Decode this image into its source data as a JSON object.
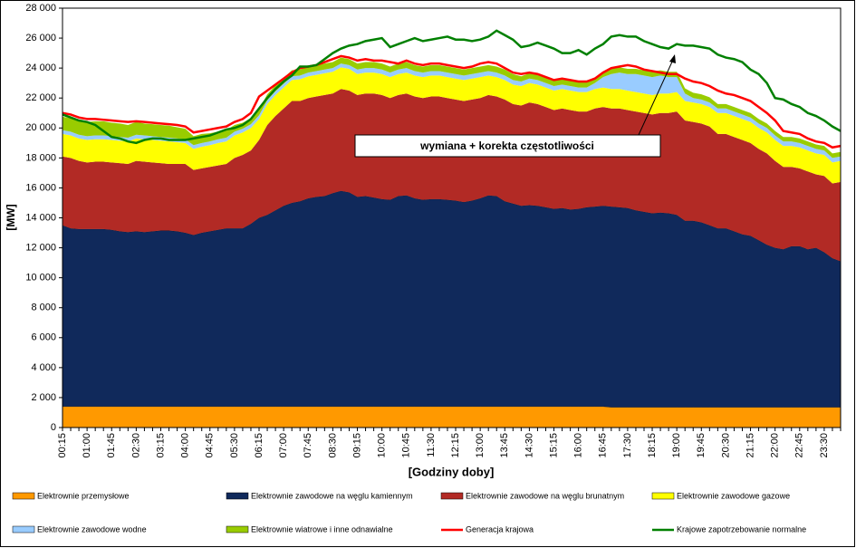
{
  "chart_data": {
    "type": "area",
    "stacked": true,
    "y_label": "[MW]",
    "x_label": "[Godziny doby]",
    "annotation": "wymiana + korekta częstotliwości",
    "ylim": [
      0,
      28000
    ],
    "yticks": [
      0,
      {
        "value": 2000,
        "label": "2 000"
      },
      {
        "value": 4000,
        "label": "4 000"
      },
      {
        "value": 6000,
        "label": "6 000"
      },
      {
        "value": 8000,
        "label": "8 000"
      },
      {
        "value": 10000,
        "label": "10 000"
      },
      {
        "value": 12000,
        "label": "12 000"
      },
      {
        "value": 14000,
        "label": "14 000"
      },
      {
        "value": 16000,
        "label": "16 000"
      },
      {
        "value": 18000,
        "label": "18 000"
      },
      {
        "value": 20000,
        "label": "20 000"
      },
      {
        "value": 22000,
        "label": "22 000"
      },
      {
        "value": 24000,
        "label": "24 000"
      },
      {
        "value": 26000,
        "label": "26 000"
      },
      {
        "value": 28000,
        "label": "28 000"
      }
    ],
    "categories": [
      "00:15",
      null,
      null,
      "01:00",
      null,
      null,
      "01:45",
      null,
      null,
      "02:30",
      null,
      null,
      "03:15",
      null,
      null,
      "04:00",
      null,
      null,
      "04:45",
      null,
      null,
      "05:30",
      null,
      null,
      "06:15",
      null,
      null,
      "07:00",
      null,
      null,
      "07:45",
      null,
      null,
      "08:30",
      null,
      null,
      "09:15",
      null,
      null,
      "10:00",
      null,
      null,
      "10:45",
      null,
      null,
      "11:30",
      null,
      null,
      "12:15",
      null,
      null,
      "13:00",
      null,
      null,
      "13:45",
      null,
      null,
      "14:30",
      null,
      null,
      "15:15",
      null,
      null,
      "16:00",
      null,
      null,
      "16:45",
      null,
      null,
      "17:30",
      null,
      null,
      "18:15",
      null,
      null,
      "19:00",
      null,
      null,
      "19:45",
      null,
      null,
      "20:30",
      null,
      null,
      "21:15",
      null,
      null,
      "22:00",
      null,
      null,
      "22:45",
      null,
      null,
      "23:30",
      null,
      null
    ],
    "series": [
      {
        "name": "Elektrownie przemysłowe",
        "type": "area",
        "color": "#FF9900",
        "values": [
          1400,
          1400,
          1400,
          1400,
          1400,
          1400,
          1400,
          1400,
          1400,
          1400,
          1400,
          1400,
          1400,
          1400,
          1400,
          1400,
          1400,
          1400,
          1400,
          1400,
          1400,
          1400,
          1400,
          1400,
          1400,
          1400,
          1400,
          1400,
          1400,
          1400,
          1400,
          1400,
          1400,
          1400,
          1400,
          1400,
          1400,
          1400,
          1400,
          1400,
          1400,
          1400,
          1400,
          1400,
          1400,
          1400,
          1400,
          1400,
          1400,
          1400,
          1400,
          1400,
          1400,
          1400,
          1400,
          1400,
          1400,
          1400,
          1400,
          1400,
          1400,
          1400,
          1400,
          1400,
          1400,
          1400,
          1400,
          1350,
          1350,
          1350,
          1350,
          1350,
          1350,
          1350,
          1350,
          1350,
          1350,
          1350,
          1350,
          1350,
          1350,
          1350,
          1350,
          1350,
          1350,
          1350,
          1350,
          1350,
          1350,
          1350,
          1350,
          1350,
          1350,
          1350,
          1350,
          1350
        ]
      },
      {
        "name": "Elektrownie zawodowe na węglu kamiennym",
        "type": "area",
        "color": "#10295B",
        "values": [
          12100,
          11900,
          11850,
          11850,
          11850,
          11850,
          11800,
          11700,
          11650,
          11700,
          11650,
          11700,
          11750,
          11750,
          11700,
          11600,
          11450,
          11600,
          11700,
          11800,
          11900,
          11900,
          11900,
          12200,
          12600,
          12800,
          13100,
          13400,
          13600,
          13700,
          13900,
          14000,
          14050,
          14250,
          14400,
          14300,
          14000,
          14050,
          13950,
          13850,
          13800,
          14050,
          14100,
          13900,
          13800,
          13850,
          13850,
          13800,
          13750,
          13650,
          13750,
          13900,
          14100,
          14050,
          13700,
          13550,
          13400,
          13450,
          13400,
          13300,
          13200,
          13250,
          13150,
          13200,
          13300,
          13350,
          13400,
          13400,
          13350,
          13300,
          13150,
          13050,
          12950,
          13000,
          12950,
          12850,
          12450,
          12450,
          12350,
          12150,
          11950,
          11950,
          11750,
          11550,
          11450,
          11150,
          10850,
          10650,
          10550,
          10750,
          10750,
          10550,
          10650,
          10350,
          9950,
          9750
        ]
      },
      {
        "name": "Elektrownie zawodowe na węglu brunatnym",
        "type": "area",
        "color": "#B22A25",
        "values": [
          4600,
          4700,
          4550,
          4450,
          4500,
          4500,
          4500,
          4550,
          4550,
          4700,
          4700,
          4600,
          4500,
          4450,
          4500,
          4600,
          4350,
          4300,
          4300,
          4300,
          4300,
          4700,
          4900,
          4900,
          5200,
          6000,
          6300,
          6500,
          6800,
          6700,
          6700,
          6700,
          6750,
          6650,
          6800,
          6800,
          6800,
          6850,
          6950,
          6950,
          6800,
          6750,
          6800,
          6800,
          6800,
          6850,
          6850,
          6800,
          6750,
          6750,
          6750,
          6700,
          6700,
          6650,
          6800,
          6650,
          6700,
          6850,
          6800,
          6700,
          6600,
          6650,
          6650,
          6500,
          6400,
          6550,
          6600,
          6550,
          6600,
          6550,
          6600,
          6600,
          6600,
          6650,
          6700,
          6900,
          6700,
          6600,
          6600,
          6600,
          6300,
          6300,
          6300,
          6300,
          6200,
          6100,
          6100,
          5800,
          5500,
          5300,
          5200,
          5200,
          4900,
          5100,
          5000,
          5300
        ]
      },
      {
        "name": "Elektrownie zawodowe gazowe",
        "type": "area",
        "color": "#FFFF00",
        "values": [
          1500,
          1500,
          1500,
          1500,
          1500,
          1500,
          1500,
          1500,
          1500,
          1500,
          1500,
          1500,
          1500,
          1500,
          1450,
          1400,
          1400,
          1450,
          1450,
          1500,
          1500,
          1500,
          1500,
          1500,
          1400,
          1400,
          1400,
          1400,
          1400,
          1450,
          1450,
          1450,
          1450,
          1450,
          1450,
          1450,
          1400,
          1400,
          1400,
          1400,
          1400,
          1400,
          1400,
          1400,
          1400,
          1400,
          1400,
          1400,
          1400,
          1400,
          1400,
          1400,
          1300,
          1300,
          1300,
          1300,
          1300,
          1300,
          1300,
          1300,
          1300,
          1300,
          1300,
          1300,
          1300,
          1300,
          1300,
          1300,
          1300,
          1300,
          1300,
          1300,
          1300,
          1300,
          1300,
          1300,
          1300,
          1300,
          1300,
          1300,
          1400,
          1400,
          1400,
          1400,
          1400,
          1400,
          1400,
          1400,
          1400,
          1400,
          1400,
          1400,
          1400,
          1400,
          1400,
          1400
        ]
      },
      {
        "name": "Elektrownie zawodowe wodne",
        "type": "area",
        "color": "#99CCFF",
        "values": [
          250,
          250,
          250,
          250,
          250,
          250,
          250,
          250,
          250,
          250,
          250,
          250,
          250,
          250,
          250,
          250,
          250,
          250,
          250,
          250,
          250,
          250,
          250,
          250,
          250,
          250,
          250,
          250,
          250,
          250,
          250,
          250,
          250,
          250,
          250,
          250,
          300,
          300,
          300,
          300,
          300,
          300,
          300,
          300,
          300,
          300,
          300,
          300,
          300,
          300,
          300,
          300,
          300,
          300,
          300,
          300,
          300,
          300,
          300,
          300,
          300,
          300,
          300,
          300,
          300,
          400,
          700,
          1000,
          1100,
          1100,
          1200,
          1200,
          1200,
          1200,
          1100,
          1000,
          500,
          300,
          300,
          300,
          300,
          300,
          300,
          300,
          300,
          300,
          300,
          300,
          300,
          300,
          300,
          300,
          300,
          300,
          300,
          300
        ]
      },
      {
        "name": "Elektrownie wiatrowe i inne odnawialne",
        "type": "area",
        "color": "#99CC00",
        "values": [
          900,
          900,
          950,
          950,
          950,
          950,
          900,
          900,
          850,
          850,
          800,
          800,
          800,
          800,
          750,
          700,
          600,
          600,
          550,
          500,
          500,
          450,
          400,
          400,
          400,
          400,
          400,
          400,
          400,
          400,
          400,
          400,
          400,
          400,
          400,
          400,
          400,
          400,
          400,
          400,
          400,
          400,
          400,
          400,
          400,
          400,
          400,
          400,
          400,
          400,
          400,
          400,
          400,
          400,
          400,
          400,
          350,
          350,
          350,
          350,
          350,
          350,
          350,
          350,
          350,
          350,
          350,
          350,
          350,
          350,
          350,
          350,
          350,
          350,
          350,
          350,
          350,
          350,
          350,
          350,
          300,
          300,
          300,
          300,
          300,
          300,
          300,
          300,
          300,
          300,
          300,
          300,
          300,
          300,
          300,
          300
        ]
      },
      {
        "name": "Generacja krajowa",
        "type": "line",
        "color": "#FF0000",
        "values": [
          21000,
          20900,
          20700,
          20600,
          20600,
          20550,
          20500,
          20450,
          20400,
          20450,
          20400,
          20350,
          20300,
          20250,
          20200,
          20100,
          19700,
          19800,
          19900,
          20000,
          20100,
          20400,
          20600,
          21000,
          22100,
          22500,
          22900,
          23300,
          23700,
          24000,
          24100,
          24200,
          24400,
          24600,
          24800,
          24700,
          24500,
          24600,
          24500,
          24500,
          24400,
          24300,
          24500,
          24300,
          24200,
          24300,
          24300,
          24200,
          24100,
          24000,
          24100,
          24300,
          24400,
          24300,
          24000,
          23700,
          23600,
          23700,
          23600,
          23400,
          23200,
          23300,
          23200,
          23100,
          23100,
          23300,
          23700,
          24000,
          24100,
          24200,
          24100,
          23900,
          23800,
          23700,
          23600,
          23600,
          23300,
          23100,
          23000,
          22800,
          22500,
          22300,
          22200,
          22000,
          21800,
          21400,
          21000,
          20500,
          19800,
          19700,
          19600,
          19300,
          19100,
          19000,
          18700,
          18800
        ]
      },
      {
        "name": "Krajowe zapotrzebowanie normalne",
        "type": "line",
        "color": "#008000",
        "values": [
          20900,
          20700,
          20500,
          20400,
          20200,
          19800,
          19400,
          19300,
          19100,
          19000,
          19200,
          19300,
          19300,
          19200,
          19200,
          19200,
          19300,
          19400,
          19500,
          19700,
          19900,
          20000,
          20200,
          20600,
          21300,
          22000,
          22600,
          23100,
          23500,
          24100,
          24100,
          24200,
          24600,
          25000,
          25300,
          25500,
          25600,
          25800,
          25900,
          26000,
          25400,
          25600,
          25800,
          26000,
          25800,
          25900,
          26000,
          26100,
          25900,
          25900,
          25800,
          25900,
          26100,
          26500,
          26200,
          25900,
          25400,
          25500,
          25700,
          25500,
          25300,
          25000,
          25000,
          25200,
          24900,
          25300,
          25600,
          26100,
          26200,
          26100,
          26100,
          25800,
          25600,
          25400,
          25300,
          25600,
          25500,
          25500,
          25400,
          25300,
          24900,
          24700,
          24600,
          24400,
          23900,
          23600,
          23000,
          22000,
          21900,
          21600,
          21400,
          21000,
          20800,
          20500,
          20100,
          19800
        ]
      }
    ]
  }
}
